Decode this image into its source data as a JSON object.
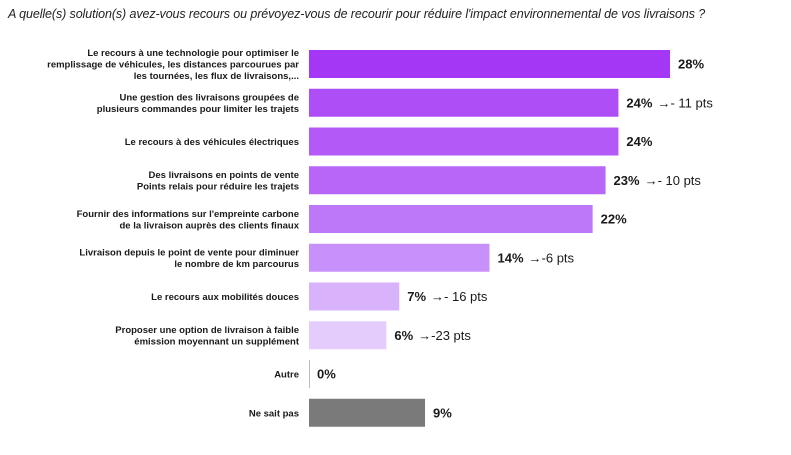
{
  "chart_data": {
    "type": "bar",
    "orientation": "horizontal",
    "title": "A quelle(s) solution(s) avez-vous recours ou prévoyez-vous de recourir pour réduire l'impact environnemental de vos livraisons ?",
    "xlabel": "",
    "ylabel": "",
    "xlim": [
      0,
      28
    ],
    "grid": false,
    "value_suffix": "%",
    "categories": [
      [
        "Le recours à une technologie pour optimiser le",
        "remplissage de véhicules, les distances parcourues par",
        "les tournées, les flux de livraisons,..."
      ],
      [
        "Une gestion des livraisons groupées de",
        "plusieurs commandes pour limiter les trajets"
      ],
      [
        "Le recours à des véhicules électriques"
      ],
      [
        "Des livraisons en points de vente",
        "Points relais pour réduire les trajets"
      ],
      [
        "Fournir des informations sur l'empreinte carbone",
        "de la livraison auprès des clients finaux"
      ],
      [
        "Livraison depuis le point de vente pour diminuer",
        "le nombre de km parcourus"
      ],
      [
        "Le recours aux mobilités douces"
      ],
      [
        "Proposer une option de livraison à faible",
        "émission moyennant un supplément"
      ],
      [
        "Autre"
      ],
      [
        "Ne sait pas"
      ]
    ],
    "values": [
      28,
      24,
      24,
      23,
      22,
      14,
      7,
      6,
      0,
      9
    ],
    "deltas": [
      "",
      "→- 11 pts",
      "",
      "→- 10 pts",
      "",
      "→-6 pts",
      "→- 16 pts",
      "→-23 pts",
      "",
      ""
    ],
    "colors": [
      "#a436f5",
      "#ad4ef7",
      "#b359f8",
      "#b866f8",
      "#bd77f9",
      "#c890fa",
      "#d9b2fc",
      "#e4cdfd",
      "#7a7a7a",
      "#7a7a7a"
    ]
  }
}
